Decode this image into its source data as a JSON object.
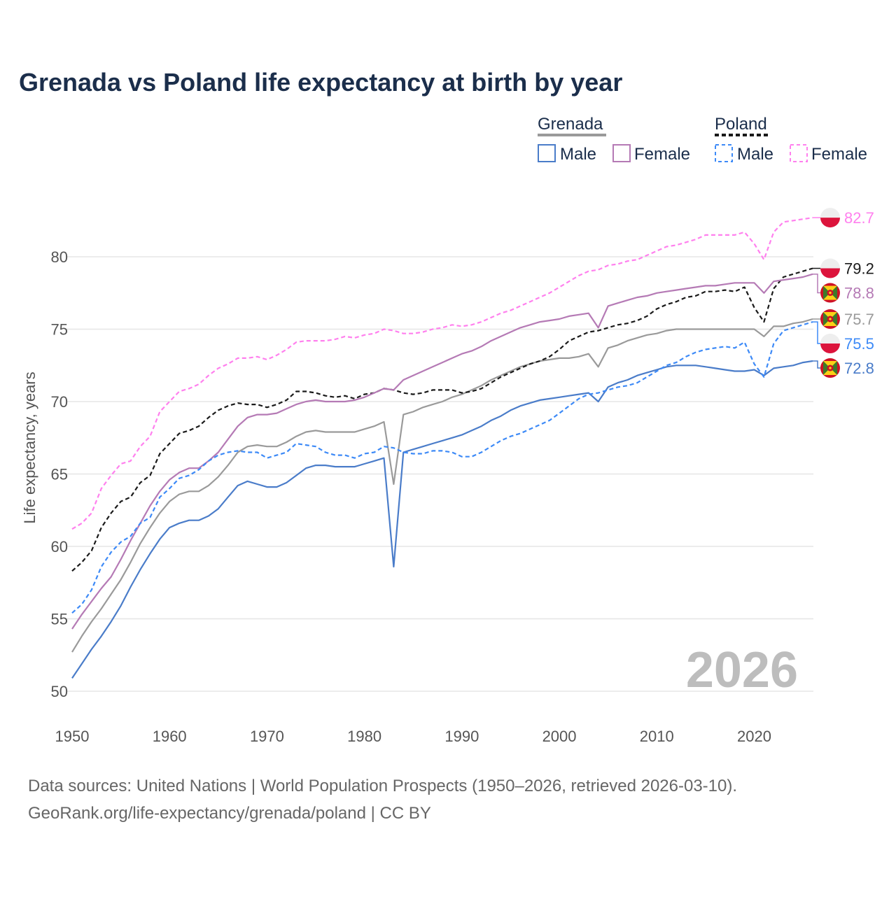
{
  "chart_data": {
    "type": "line",
    "title": "Grenada vs Poland life expectancy at birth by year",
    "xlabel": "",
    "ylabel": "Life expectancy, years",
    "xlim": [
      1950,
      2026
    ],
    "ylim": [
      50,
      83
    ],
    "x_ticks": [
      1950,
      1960,
      1970,
      1980,
      1990,
      2000,
      2010,
      2020
    ],
    "y_ticks": [
      50,
      55,
      60,
      65,
      70,
      75,
      80
    ],
    "grid": true,
    "year_watermark": "2026",
    "legend": {
      "placement": "top-right",
      "groups": [
        {
          "country": "Grenada",
          "items": [
            "Male",
            "Female"
          ]
        },
        {
          "country": "Poland",
          "items": [
            "Male",
            "Female"
          ]
        }
      ]
    },
    "x": [
      1950,
      1951,
      1952,
      1953,
      1954,
      1955,
      1956,
      1957,
      1958,
      1959,
      1960,
      1961,
      1962,
      1963,
      1964,
      1965,
      1966,
      1967,
      1968,
      1969,
      1970,
      1971,
      1972,
      1973,
      1974,
      1975,
      1976,
      1977,
      1978,
      1979,
      1980,
      1981,
      1982,
      1983,
      1984,
      1985,
      1986,
      1987,
      1988,
      1989,
      1990,
      1991,
      1992,
      1993,
      1994,
      1995,
      1996,
      1997,
      1998,
      1999,
      2000,
      2001,
      2002,
      2003,
      2004,
      2005,
      2006,
      2007,
      2008,
      2009,
      2010,
      2011,
      2012,
      2013,
      2014,
      2015,
      2016,
      2017,
      2018,
      2019,
      2020,
      2021,
      2022,
      2023,
      2024,
      2025,
      2026
    ],
    "series": [
      {
        "name": "Poland Female",
        "country": "Poland",
        "color": "#ff80ee",
        "dashed": true,
        "last_label": "82.7",
        "values": [
          61.2,
          61.6,
          62.3,
          64.0,
          64.9,
          65.7,
          65.9,
          66.9,
          67.6,
          69.3,
          70.0,
          70.7,
          70.9,
          71.2,
          71.8,
          72.3,
          72.6,
          73.0,
          73.0,
          73.1,
          72.9,
          73.2,
          73.6,
          74.1,
          74.2,
          74.2,
          74.2,
          74.3,
          74.5,
          74.4,
          74.6,
          74.7,
          75.0,
          74.9,
          74.7,
          74.7,
          74.8,
          75.0,
          75.1,
          75.3,
          75.2,
          75.3,
          75.5,
          75.8,
          76.1,
          76.3,
          76.6,
          76.9,
          77.2,
          77.5,
          77.9,
          78.3,
          78.7,
          79.0,
          79.1,
          79.4,
          79.5,
          79.7,
          79.8,
          80.1,
          80.4,
          80.7,
          80.8,
          81.0,
          81.2,
          81.5,
          81.5,
          81.5,
          81.5,
          81.7,
          80.9,
          79.8,
          81.7,
          82.4,
          82.5,
          82.6,
          82.7
        ]
      },
      {
        "name": "Poland",
        "country": "Poland",
        "color": "#1a1a1a",
        "dashed": true,
        "last_label": "79.2",
        "values": [
          58.3,
          58.9,
          59.7,
          61.3,
          62.3,
          63.1,
          63.4,
          64.4,
          64.9,
          66.4,
          67.1,
          67.8,
          68.0,
          68.3,
          68.9,
          69.4,
          69.7,
          69.9,
          69.8,
          69.8,
          69.6,
          69.8,
          70.1,
          70.7,
          70.7,
          70.6,
          70.4,
          70.3,
          70.4,
          70.2,
          70.5,
          70.6,
          70.9,
          70.8,
          70.6,
          70.5,
          70.6,
          70.8,
          70.8,
          70.8,
          70.6,
          70.7,
          70.9,
          71.3,
          71.7,
          72.0,
          72.3,
          72.6,
          72.8,
          73.1,
          73.6,
          74.2,
          74.5,
          74.8,
          74.9,
          75.1,
          75.3,
          75.4,
          75.6,
          75.9,
          76.4,
          76.7,
          76.9,
          77.2,
          77.3,
          77.6,
          77.6,
          77.7,
          77.6,
          77.9,
          76.5,
          75.5,
          77.8,
          78.6,
          78.8,
          79.0,
          79.2
        ]
      },
      {
        "name": "Grenada Female",
        "country": "Grenada",
        "color": "#b57ab5",
        "dashed": false,
        "last_label": "78.8",
        "values": [
          54.3,
          55.3,
          56.2,
          57.1,
          57.9,
          59.1,
          60.4,
          61.6,
          62.8,
          63.8,
          64.6,
          65.1,
          65.4,
          65.4,
          65.9,
          66.5,
          67.4,
          68.3,
          68.9,
          69.1,
          69.1,
          69.2,
          69.5,
          69.8,
          70.0,
          70.1,
          70.0,
          70.0,
          70.0,
          70.1,
          70.3,
          70.6,
          70.9,
          70.8,
          71.5,
          71.8,
          72.1,
          72.4,
          72.7,
          73.0,
          73.3,
          73.5,
          73.8,
          74.2,
          74.5,
          74.8,
          75.1,
          75.3,
          75.5,
          75.6,
          75.7,
          75.9,
          76.0,
          76.1,
          75.1,
          76.6,
          76.8,
          77.0,
          77.2,
          77.3,
          77.5,
          77.6,
          77.7,
          77.8,
          77.9,
          78.0,
          78.0,
          78.1,
          78.2,
          78.2,
          78.2,
          77.5,
          78.3,
          78.4,
          78.5,
          78.6,
          78.8
        ]
      },
      {
        "name": "Grenada",
        "country": "Grenada",
        "color": "#9a9a9a",
        "dashed": false,
        "last_label": "75.7",
        "values": [
          52.7,
          53.8,
          54.8,
          55.7,
          56.7,
          57.7,
          58.9,
          60.2,
          61.3,
          62.3,
          63.1,
          63.6,
          63.8,
          63.8,
          64.2,
          64.8,
          65.6,
          66.5,
          66.9,
          67.0,
          66.9,
          66.9,
          67.2,
          67.6,
          67.9,
          68.0,
          67.9,
          67.9,
          67.9,
          67.9,
          68.1,
          68.3,
          68.6,
          64.3,
          69.1,
          69.3,
          69.6,
          69.8,
          70.0,
          70.3,
          70.5,
          70.8,
          71.1,
          71.5,
          71.8,
          72.1,
          72.4,
          72.6,
          72.8,
          72.9,
          73.0,
          73.0,
          73.1,
          73.3,
          72.4,
          73.7,
          73.9,
          74.2,
          74.4,
          74.6,
          74.7,
          74.9,
          75.0,
          75.0,
          75.0,
          75.0,
          75.0,
          75.0,
          75.0,
          75.0,
          75.0,
          74.5,
          75.2,
          75.2,
          75.4,
          75.5,
          75.7
        ]
      },
      {
        "name": "Poland Male",
        "country": "Poland",
        "color": "#3d8af7",
        "dashed": true,
        "last_label": "75.5",
        "values": [
          55.4,
          56.0,
          57.0,
          58.6,
          59.6,
          60.3,
          60.7,
          61.6,
          62.0,
          63.4,
          64.0,
          64.7,
          64.9,
          65.3,
          65.9,
          66.3,
          66.5,
          66.6,
          66.5,
          66.5,
          66.1,
          66.3,
          66.5,
          67.1,
          67.0,
          66.9,
          66.5,
          66.3,
          66.3,
          66.1,
          66.4,
          66.5,
          66.9,
          66.8,
          66.5,
          66.4,
          66.4,
          66.6,
          66.6,
          66.5,
          66.2,
          66.2,
          66.5,
          66.9,
          67.3,
          67.6,
          67.8,
          68.1,
          68.4,
          68.7,
          69.2,
          69.7,
          70.2,
          70.5,
          70.6,
          70.8,
          71.0,
          71.1,
          71.3,
          71.7,
          72.1,
          72.5,
          72.7,
          73.1,
          73.4,
          73.6,
          73.7,
          73.8,
          73.7,
          74.1,
          72.6,
          71.7,
          74.0,
          74.9,
          75.1,
          75.3,
          75.5
        ]
      },
      {
        "name": "Grenada Male",
        "country": "Grenada",
        "color": "#4a7cc9",
        "dashed": false,
        "last_label": "72.8",
        "values": [
          50.9,
          51.9,
          52.9,
          53.8,
          54.8,
          55.9,
          57.2,
          58.4,
          59.5,
          60.5,
          61.3,
          61.6,
          61.8,
          61.8,
          62.1,
          62.6,
          63.4,
          64.2,
          64.5,
          64.3,
          64.1,
          64.1,
          64.4,
          64.9,
          65.4,
          65.6,
          65.6,
          65.5,
          65.5,
          65.5,
          65.7,
          65.9,
          66.1,
          58.6,
          66.5,
          66.7,
          66.9,
          67.1,
          67.3,
          67.5,
          67.7,
          68.0,
          68.3,
          68.7,
          69.0,
          69.4,
          69.7,
          69.9,
          70.1,
          70.2,
          70.3,
          70.4,
          70.5,
          70.6,
          70.0,
          71.0,
          71.3,
          71.5,
          71.8,
          72.0,
          72.2,
          72.4,
          72.5,
          72.5,
          72.5,
          72.4,
          72.3,
          72.2,
          72.1,
          72.1,
          72.2,
          71.8,
          72.3,
          72.4,
          72.5,
          72.7,
          72.8
        ]
      }
    ],
    "footer": [
      "Data sources: United Nations | World Population Prospects (1950–2026, retrieved 2026-03-10).",
      "GeoRank.org/life-expectancy/grenada/poland | CC BY"
    ]
  },
  "colors": {
    "title": "#1b2e4b",
    "grenada_total": "#9a9a9a",
    "poland_total": "#1a1a1a",
    "grenada_male": "#4a7cc9",
    "grenada_female": "#b57ab5",
    "poland_male": "#3d8af7",
    "poland_female": "#ff80ee"
  }
}
